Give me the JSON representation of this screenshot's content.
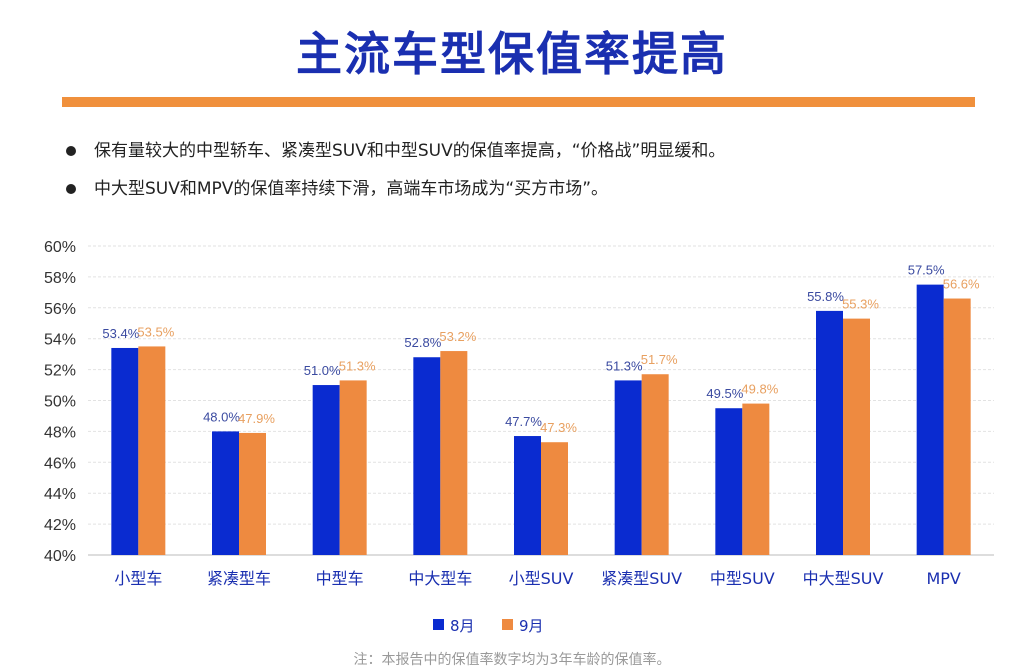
{
  "header": {
    "title": "主流车型保值率提高"
  },
  "bullets": [
    "保有量较大的中型轿车、紧凑型SUV和中型SUV的保值率提高，“价格战”明显缓和。",
    "中大型SUV和MPV的保值率持续下滑，高端车市场成为“买方市场”。"
  ],
  "footnote": "注：本报告中的保值率数字均为3年车龄的保值率。",
  "chart_data": {
    "type": "bar",
    "title": "",
    "xlabel": "",
    "ylabel": "",
    "ylim": [
      40,
      60
    ],
    "yticks": [
      40,
      42,
      44,
      46,
      48,
      50,
      52,
      54,
      56,
      58,
      60
    ],
    "ytick_format": "%",
    "grid": true,
    "legend_position": "bottom",
    "categories": [
      "小型车",
      "紧凑型车",
      "中型车",
      "中大型车",
      "小型SUV",
      "紧凑型SUV",
      "中型SUV",
      "中大型SUV",
      "MPV"
    ],
    "series": [
      {
        "name": "8月",
        "color": "#0a2bd0",
        "values": [
          53.4,
          48.0,
          51.0,
          52.8,
          47.7,
          51.3,
          49.5,
          55.8,
          57.5
        ]
      },
      {
        "name": "9月",
        "color": "#ee8a40",
        "values": [
          53.5,
          47.9,
          51.3,
          53.2,
          47.3,
          51.7,
          49.8,
          55.3,
          56.6
        ]
      }
    ],
    "label_colors": [
      "#3a4aa0",
      "#e8a060"
    ]
  }
}
